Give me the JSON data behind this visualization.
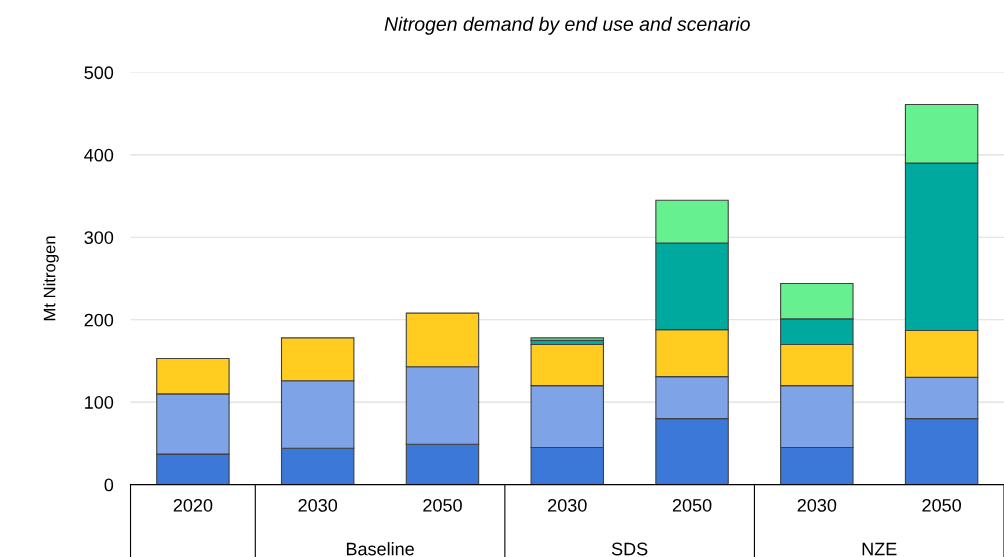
{
  "chart_data": {
    "type": "bar",
    "title": "Nitrogen demand by end use and scenario",
    "ylabel": "Mt Nitrogen",
    "categories": [
      "2020",
      "2030",
      "2050",
      "2030",
      "2050",
      "2030",
      "2050"
    ],
    "annotations": [
      "Baseline",
      "SDS",
      "NZE"
    ],
    "stacked": true,
    "grid": "y",
    "ylim": [
      0,
      500
    ],
    "yticks": [
      0,
      100,
      200,
      300,
      400,
      500
    ],
    "series": [
      {
        "color": "#3c78d8",
        "values": [
          37,
          44,
          49,
          45,
          80,
          45,
          80
        ]
      },
      {
        "color": "#7ea3e6",
        "values": [
          73,
          82,
          94,
          75,
          51,
          75,
          50
        ]
      },
      {
        "color": "#ffcc1f",
        "values": [
          43,
          52,
          65,
          50,
          57,
          50,
          57
        ]
      },
      {
        "color": "#00a99d",
        "values": [
          0,
          0,
          0,
          5,
          105,
          31,
          203
        ]
      },
      {
        "color": "#66f08f",
        "values": [
          0,
          0,
          0,
          3,
          52,
          43,
          71
        ]
      }
    ]
  }
}
